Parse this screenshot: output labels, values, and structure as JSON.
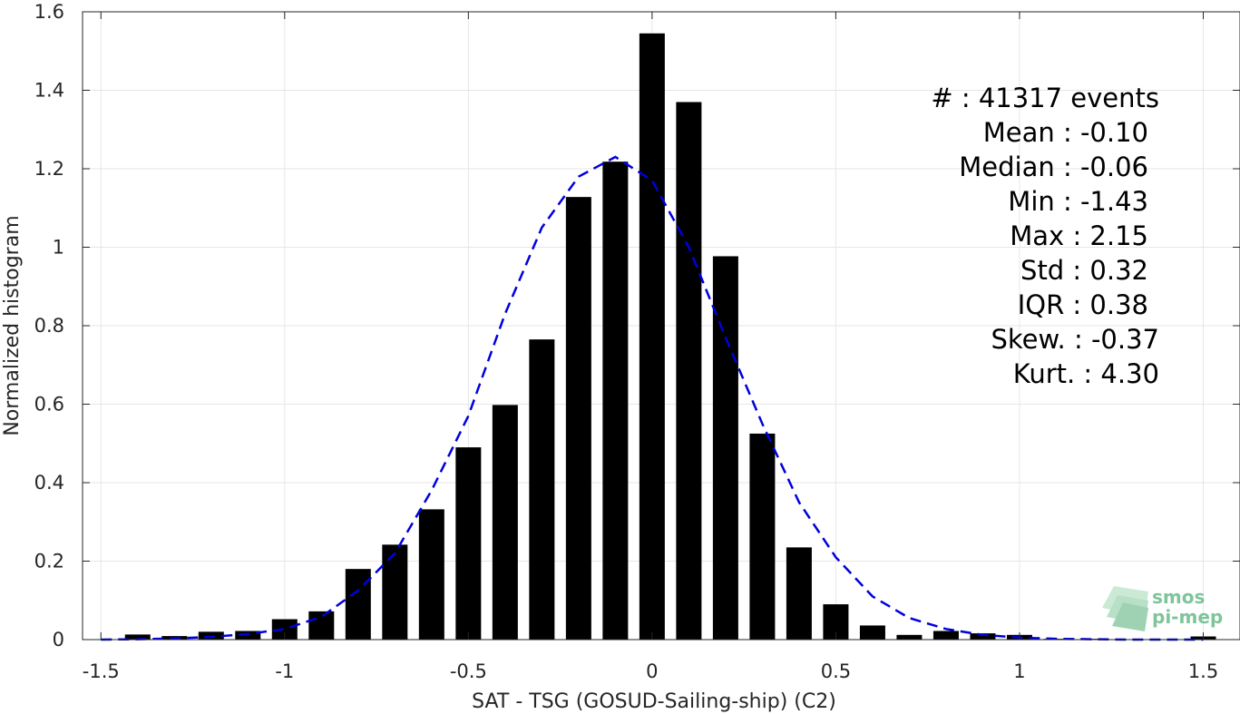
{
  "chart_data": {
    "type": "bar",
    "xlabel": "SAT - TSG (GOSUD-Sailing-ship) (C2)",
    "ylabel": "Normalized histogram",
    "xlim": [
      -1.55,
      1.6
    ],
    "ylim": [
      0,
      1.6
    ],
    "xticks": [
      -1.5,
      -1,
      -0.5,
      0,
      0.5,
      1,
      1.5
    ],
    "xtick_labels": [
      "-1.5",
      "-1",
      "-0.5",
      "0",
      "0.5",
      "1",
      "1.5"
    ],
    "yticks": [
      0,
      0.2,
      0.4,
      0.6,
      0.8,
      1,
      1.2,
      1.4,
      1.6
    ],
    "ytick_labels": [
      "0",
      "0.2",
      "0.4",
      "0.6",
      "0.8",
      "1",
      "1.2",
      "1.4",
      "1.6"
    ],
    "grid": true,
    "bin_centers": [
      -1.4,
      -1.3,
      -1.2,
      -1.1,
      -1.0,
      -0.9,
      -0.8,
      -0.7,
      -0.6,
      -0.5,
      -0.4,
      -0.3,
      -0.2,
      -0.1,
      0.0,
      0.1,
      0.2,
      0.3,
      0.4,
      0.5,
      0.6,
      0.7,
      0.8,
      0.9,
      1.0,
      1.1,
      1.2,
      1.3,
      1.4,
      1.5
    ],
    "values": [
      0.013,
      0.009,
      0.02,
      0.022,
      0.052,
      0.072,
      0.18,
      0.242,
      0.332,
      0.49,
      0.598,
      0.765,
      1.128,
      1.218,
      1.545,
      1.37,
      0.977,
      0.525,
      0.235,
      0.09,
      0.036,
      0.012,
      0.022,
      0.016,
      0.012,
      0.002,
      0.002,
      0.001,
      0.001,
      0.008
    ],
    "bar_color": "#000000",
    "fit_curve": {
      "style": "dashed",
      "color": "#0000dd",
      "x": [
        -1.5,
        -1.4,
        -1.3,
        -1.2,
        -1.1,
        -1.0,
        -0.9,
        -0.8,
        -0.7,
        -0.6,
        -0.5,
        -0.4,
        -0.3,
        -0.2,
        -0.1,
        0.0,
        0.1,
        0.2,
        0.3,
        0.4,
        0.5,
        0.6,
        0.7,
        0.8,
        0.9,
        1.0,
        1.1,
        1.2,
        1.3,
        1.4,
        1.5
      ],
      "y": [
        0.0,
        0.001,
        0.003,
        0.007,
        0.014,
        0.027,
        0.058,
        0.125,
        0.22,
        0.38,
        0.57,
        0.83,
        1.05,
        1.18,
        1.23,
        1.17,
        1.0,
        0.77,
        0.55,
        0.35,
        0.21,
        0.11,
        0.055,
        0.027,
        0.012,
        0.005,
        0.002,
        0.001,
        0.0,
        0.0,
        0.0
      ]
    }
  },
  "stats": {
    "events": "#  : 41317 events",
    "mean": "Mean : -0.10",
    "median": "Median : -0.06",
    "min": "Min : -1.43",
    "max": "Max : 2.15",
    "std": "Std : 0.32",
    "iqr": "IQR : 0.38",
    "skew": "Skew. : -0.37",
    "kurt": "Kurt. : 4.30"
  },
  "logo": {
    "line1": "smos",
    "line2": "pi-mep"
  },
  "colors": {
    "grid": "#e6e6e6",
    "axis": "#262626",
    "logo": "#7fc49a"
  }
}
